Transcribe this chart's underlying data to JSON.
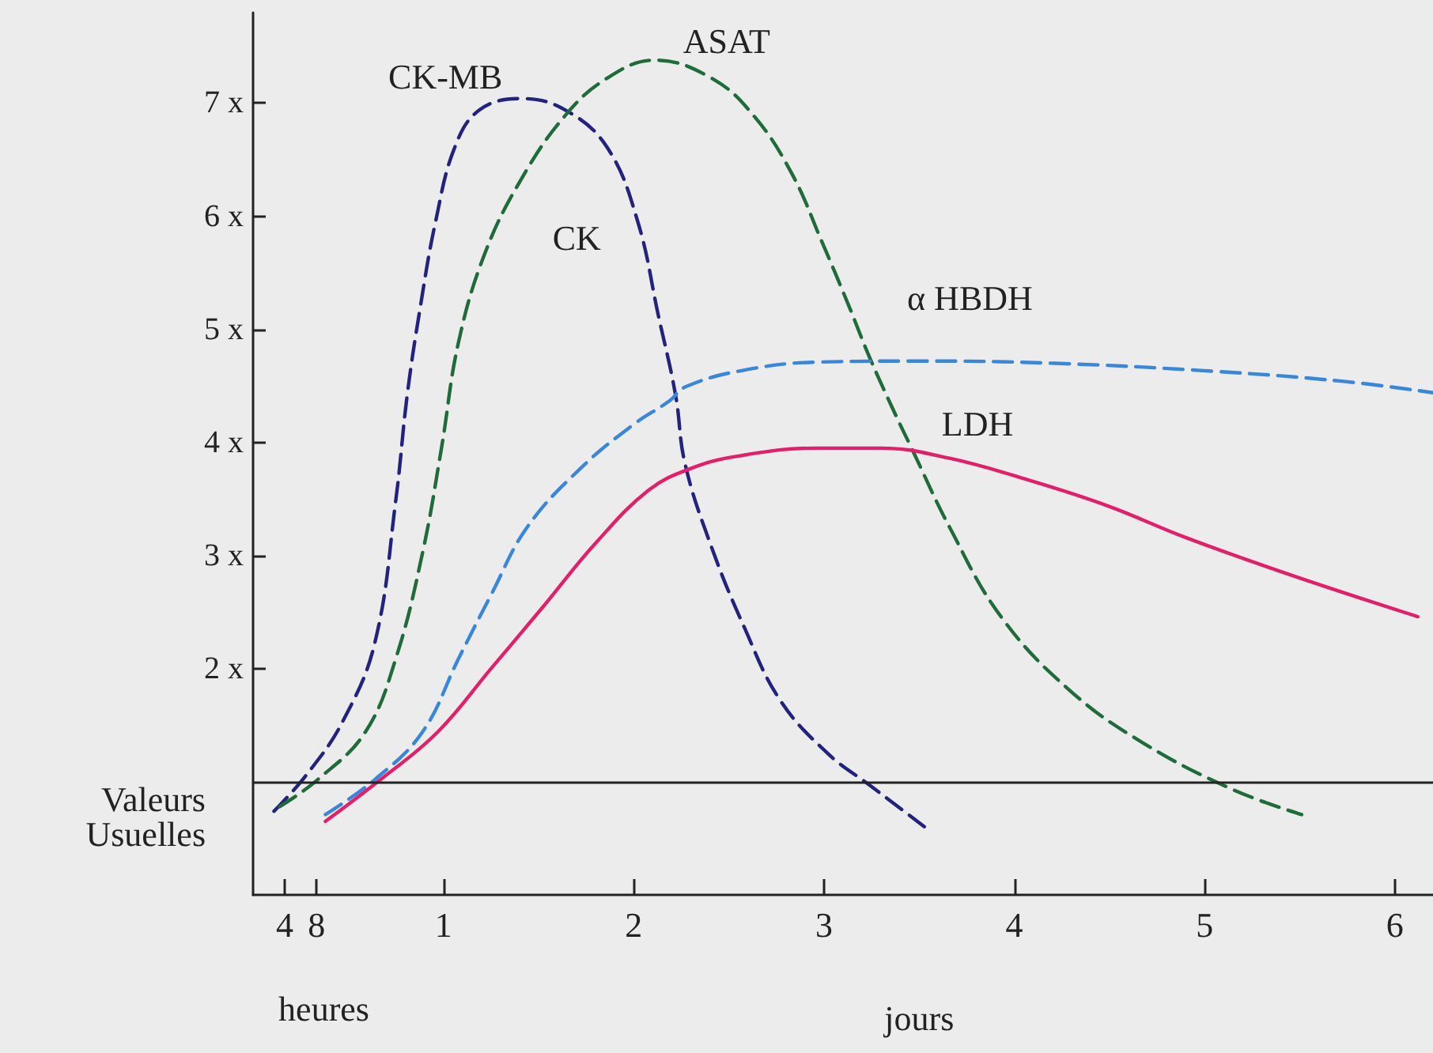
{
  "chart_data": {
    "type": "line",
    "xlabel": "jours",
    "x2label": "heures",
    "annotations": [
      "CK"
    ],
    "xlim": [
      0,
      6.2
    ],
    "xticks": [
      1,
      2,
      3,
      4,
      5,
      6
    ],
    "x2lim": [
      0,
      148.8
    ],
    "x2ticks": [
      4,
      8
    ],
    "ylim": [
      0,
      7.8
    ],
    "yticks": [
      {
        "value": 2,
        "label": "2 x"
      },
      {
        "value": 3,
        "label": "3 x"
      },
      {
        "value": 4,
        "label": "4 x"
      },
      {
        "value": 5,
        "label": "5 x"
      },
      {
        "value": 6,
        "label": "6 x"
      },
      {
        "value": 7,
        "label": "7 x"
      }
    ],
    "grid": false,
    "legend": false,
    "marker": "none",
    "ref_lines": [
      {
        "axis": "y",
        "value": 1,
        "label": "Valeurs Usuelles",
        "color": "#222222"
      }
    ],
    "series": [
      {
        "name": "CK-MB",
        "color": "#23237e",
        "line_style": "dashed",
        "x": [
          0.11,
          0.28,
          0.47,
          0.64,
          0.75,
          0.81,
          0.88,
          0.96,
          1.06,
          1.19,
          1.41,
          1.64,
          1.86,
          2.02,
          2.13,
          2.22,
          2.27,
          2.41,
          2.58,
          2.77,
          3.02,
          3.24,
          3.53
        ],
        "values": [
          0.74,
          1.06,
          1.53,
          2.23,
          3.49,
          4.42,
          5.21,
          5.96,
          6.61,
          6.94,
          7.04,
          6.94,
          6.61,
          5.96,
          5.12,
          4.42,
          3.81,
          3.07,
          2.37,
          1.72,
          1.25,
          0.97,
          0.6
        ]
      },
      {
        "name": "ASAT",
        "color": "#1f6b3a",
        "line_style": "dashed",
        "x": [
          0.14,
          0.34,
          0.59,
          0.75,
          0.89,
          0.99,
          1.08,
          1.22,
          1.41,
          1.64,
          1.86,
          2.11,
          2.41,
          2.63,
          2.83,
          2.99,
          3.13,
          3.24,
          3.38,
          3.46,
          3.66,
          3.93,
          4.29,
          4.68,
          5.15,
          5.51
        ],
        "values": [
          0.78,
          1.02,
          1.44,
          2.09,
          3.02,
          3.95,
          4.89,
          5.68,
          6.33,
          6.89,
          7.22,
          7.38,
          7.22,
          6.89,
          6.38,
          5.77,
          5.21,
          4.75,
          4.23,
          3.95,
          3.25,
          2.46,
          1.81,
          1.34,
          0.93,
          0.71
        ]
      },
      {
        "name": "α HBDH",
        "color": "#3a86d8",
        "line_style": "dashed",
        "x": [
          0.38,
          0.64,
          0.89,
          1.08,
          1.25,
          1.44,
          1.72,
          2.0,
          2.19,
          2.27,
          2.55,
          2.96,
          3.52,
          4.21,
          5.04,
          5.73,
          6.2
        ],
        "values": [
          0.71,
          1.02,
          1.44,
          2.09,
          2.65,
          3.25,
          3.77,
          4.16,
          4.37,
          4.49,
          4.63,
          4.71,
          4.72,
          4.7,
          4.63,
          4.54,
          4.44
        ]
      },
      {
        "name": "LDH",
        "color": "#e0206a",
        "line_style": "solid",
        "x": [
          0.38,
          0.67,
          0.97,
          1.25,
          1.53,
          1.8,
          2.08,
          2.3,
          2.55,
          2.96,
          3.3,
          3.66,
          4.07,
          4.49,
          4.9,
          5.45,
          6.12
        ],
        "values": [
          0.65,
          1.02,
          1.44,
          2.0,
          2.56,
          3.11,
          3.58,
          3.77,
          3.88,
          3.95,
          3.95,
          3.86,
          3.67,
          3.44,
          3.16,
          2.83,
          2.46
        ]
      }
    ]
  }
}
